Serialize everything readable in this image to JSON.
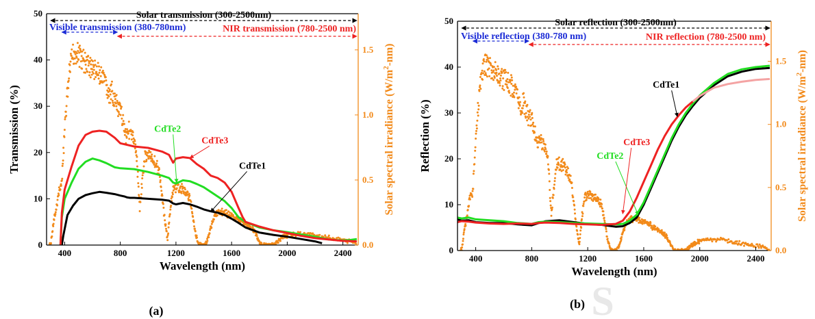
{
  "figure": {
    "panel_a_label": "(a)",
    "panel_b_label": "(b)",
    "watermark_glyph": "S"
  },
  "colors": {
    "CdTe1": "#000000",
    "CdTe2": "#22dd22",
    "CdTe3": "#ee2222",
    "CdTe3_b_tail": "#f4a3a3",
    "solar": "#f28a1a",
    "visible_band": "#1b2bd6",
    "nir_band": "#ee2222",
    "total_band": "#000000"
  },
  "chart_data": [
    {
      "type": "line",
      "panel": "(a)",
      "xlabel": "Wavelength (nm)",
      "ylabel": "Transmission (%)",
      "y2label": "Solar spectral irradiance (W/m^2-nm)",
      "y2label_parts": {
        "pre": "Solar spectral irradiance (W/m",
        "sup": "2",
        "post": "-nm)"
      },
      "xlim": [
        270,
        2510
      ],
      "ylim": [
        0,
        50
      ],
      "y2lim": [
        0,
        1.778
      ],
      "xticks": [
        400,
        800,
        1200,
        1600,
        2000,
        2400
      ],
      "yticks": [
        0,
        10,
        20,
        30,
        40,
        50
      ],
      "y2ticks": [
        0.0,
        0.5,
        1.0,
        1.5
      ],
      "y2ticklabels": [
        "0.0",
        "0.5",
        "1.0",
        "1.5"
      ],
      "grid": false,
      "bands": [
        {
          "label": "Solar transmission (300-2500nm)",
          "x0": 300,
          "x1": 2500,
          "color": "#000000"
        },
        {
          "label": "Visible transmission (380-780nm)",
          "x0": 380,
          "x1": 780,
          "color": "#1b2bd6"
        },
        {
          "label": "NIR transmission (780-2500 nm)",
          "x0": 780,
          "x1": 2500,
          "color": "#ee2222"
        }
      ],
      "series": [
        {
          "name": "CdTe1",
          "color": "#000000",
          "x": [
            380,
            390,
            420,
            460,
            500,
            550,
            600,
            650,
            700,
            760,
            800,
            830,
            850,
            870,
            900,
            1000,
            1100,
            1150,
            1180,
            1200,
            1250,
            1300,
            1350,
            1400,
            1450,
            1500,
            1550,
            1600,
            1650,
            1700,
            1800,
            1900,
            2000,
            2100,
            2200,
            2250
          ],
          "values": [
            0,
            2,
            6.5,
            8.5,
            10,
            10.8,
            11.2,
            11.5,
            11.3,
            11,
            10.7,
            10.5,
            10.3,
            10.2,
            10.2,
            10,
            9.8,
            9.6,
            9,
            8.8,
            9.1,
            8.8,
            8.3,
            7.7,
            7.3,
            7,
            6.5,
            5.7,
            4.8,
            3.8,
            2.7,
            2.2,
            1.8,
            1.3,
            0.8,
            0.4
          ]
        },
        {
          "name": "CdTe2",
          "color": "#22dd22",
          "x": [
            370,
            380,
            400,
            450,
            500,
            550,
            600,
            650,
            700,
            760,
            800,
            900,
            1000,
            1100,
            1150,
            1180,
            1200,
            1250,
            1300,
            1350,
            1400,
            1450,
            1500,
            1550,
            1600,
            1650,
            1700,
            1800,
            1900,
            2000,
            2100,
            2200,
            2300,
            2400,
            2450,
            2500
          ],
          "values": [
            0,
            6,
            10,
            13.5,
            16.5,
            18,
            18.7,
            18.3,
            17.7,
            16.8,
            16.6,
            16.4,
            15.8,
            15,
            14.5,
            13.5,
            13.3,
            14,
            13.8,
            13.2,
            12.5,
            11.5,
            10.5,
            9.5,
            8,
            6,
            5,
            3.8,
            3.2,
            2.8,
            2.3,
            1.8,
            1.2,
            1,
            1.1,
            1.3
          ]
        },
        {
          "name": "CdTe3",
          "color": "#ee2222",
          "x": [
            370,
            380,
            400,
            450,
            500,
            550,
            600,
            650,
            700,
            760,
            800,
            900,
            1000,
            1100,
            1150,
            1180,
            1200,
            1250,
            1300,
            1350,
            1400,
            1450,
            1500,
            1550,
            1600,
            1650,
            1680,
            1700,
            1800,
            1900,
            2000,
            2100,
            2200,
            2300,
            2400,
            2500
          ],
          "values": [
            0,
            7,
            12,
            17,
            21.5,
            23.8,
            24.5,
            24.7,
            24.5,
            23.2,
            22,
            21.3,
            21,
            20.2,
            19.5,
            17.8,
            18.7,
            19,
            18.8,
            17.5,
            16.5,
            15,
            14.5,
            13.5,
            11.5,
            8,
            6,
            5,
            4,
            3.2,
            2.6,
            2,
            1.5,
            1.2,
            0.9,
            0.8
          ]
        }
      ],
      "annotations": [
        {
          "text": "CdTe1",
          "color": "#000000",
          "text_x": 1750,
          "text_y": 16.5,
          "arrow_to": [
            1450,
            7.2
          ]
        },
        {
          "text": "CdTe2",
          "color": "#22dd22",
          "text_x": 1140,
          "text_y": 24.5,
          "arrow_to": [
            1205,
            13.5
          ]
        },
        {
          "text": "CdTe3",
          "color": "#ee2222",
          "text_x": 1480,
          "text_y": 22,
          "arrow_to": [
            1300,
            18.8
          ]
        }
      ],
      "solar": {
        "name": "Solar spectral irradiance",
        "color": "#f28a1a",
        "x": [
          290,
          300,
          320,
          340,
          360,
          380,
          400,
          420,
          440,
          460,
          480,
          500,
          520,
          540,
          560,
          580,
          600,
          620,
          640,
          660,
          680,
          700,
          720,
          740,
          760,
          780,
          800,
          820,
          840,
          860,
          880,
          900,
          920,
          940,
          960,
          980,
          1000,
          1020,
          1040,
          1060,
          1080,
          1100,
          1120,
          1140,
          1160,
          1180,
          1200,
          1220,
          1240,
          1260,
          1280,
          1300,
          1320,
          1340,
          1360,
          1380,
          1400,
          1420,
          1440,
          1460,
          1480,
          1500,
          1520,
          1540,
          1560,
          1580,
          1600,
          1620,
          1640,
          1660,
          1680,
          1700,
          1720,
          1740,
          1760,
          1780,
          1800,
          1820,
          1840,
          1860,
          1880,
          1900,
          1920,
          1940,
          1960,
          1980,
          2000,
          2050,
          2100,
          2150,
          2200,
          2250,
          2300,
          2350,
          2400,
          2450,
          2500
        ],
        "values": [
          0,
          0.01,
          0.18,
          0.3,
          0.45,
          0.5,
          0.95,
          1.25,
          1.45,
          1.55,
          1.58,
          1.56,
          1.52,
          1.5,
          1.48,
          1.46,
          1.44,
          1.43,
          1.4,
          1.38,
          1.34,
          1.3,
          1.2,
          1.25,
          1.18,
          1.12,
          1.1,
          1.02,
          0.9,
          0.95,
          0.9,
          0.85,
          0.7,
          0.3,
          0.55,
          0.75,
          0.73,
          0.72,
          0.7,
          0.65,
          0.6,
          0.4,
          0.2,
          0.05,
          0.3,
          0.45,
          0.48,
          0.47,
          0.46,
          0.44,
          0.42,
          0.38,
          0.25,
          0.1,
          0.02,
          0.0,
          0.0,
          0.02,
          0.1,
          0.18,
          0.24,
          0.26,
          0.27,
          0.27,
          0.26,
          0.25,
          0.24,
          0.23,
          0.22,
          0.2,
          0.19,
          0.18,
          0.16,
          0.14,
          0.12,
          0.08,
          0.03,
          0.0,
          0.0,
          0.0,
          0.0,
          0.0,
          0.02,
          0.04,
          0.06,
          0.07,
          0.08,
          0.09,
          0.09,
          0.09,
          0.08,
          0.07,
          0.06,
          0.05,
          0.04,
          0.03,
          0.02
        ]
      }
    },
    {
      "type": "line",
      "panel": "(b)",
      "xlabel": "Wavelength (nm)",
      "ylabel": "Reflection (%)",
      "y2label": "Solar spectral irradiance (W/m^2-nm)",
      "y2label_parts": {
        "pre": "Solar spectral irradiance (W/m",
        "sup": "2",
        "post": "-nm)"
      },
      "xlim": [
        270,
        2510
      ],
      "ylim": [
        0,
        50
      ],
      "y2lim": [
        0,
        1.818
      ],
      "xticks": [
        400,
        800,
        1200,
        1600,
        2000,
        2400
      ],
      "yticks": [
        0,
        10,
        20,
        30,
        40,
        50
      ],
      "y2ticks": [
        0.0,
        0.5,
        1.0,
        1.5
      ],
      "y2ticklabels": [
        "0.0",
        "0.5",
        "1.0",
        "1.5"
      ],
      "grid": false,
      "bands": [
        {
          "label": "Solar reflection (300-2500nm)",
          "x0": 300,
          "x1": 2500,
          "color": "#000000"
        },
        {
          "label": "Visible reflection (380-780 nm)",
          "x0": 380,
          "x1": 780,
          "color": "#1b2bd6"
        },
        {
          "label": "NIR reflection (780-2500 nm)",
          "x0": 780,
          "x1": 2500,
          "color": "#ee2222"
        }
      ],
      "series": [
        {
          "name": "CdTe1",
          "color": "#000000",
          "x": [
            270,
            300,
            350,
            400,
            500,
            600,
            700,
            800,
            850,
            900,
            1000,
            1100,
            1200,
            1300,
            1400,
            1450,
            1500,
            1550,
            1600,
            1650,
            1700,
            1750,
            1800,
            1850,
            1900,
            1950,
            2000,
            2100,
            2200,
            2300,
            2400,
            2500
          ],
          "values": [
            6.8,
            6.5,
            6.6,
            6.2,
            6,
            6,
            5.7,
            5.5,
            6,
            6.4,
            6.6,
            6.2,
            5.8,
            5.6,
            5.2,
            5.3,
            6,
            7.2,
            10,
            13.5,
            17,
            20.5,
            24,
            27,
            29.5,
            31.5,
            33.3,
            36,
            38,
            39,
            39.6,
            39.8
          ]
        },
        {
          "name": "CdTe2",
          "color": "#22dd22",
          "x": [
            270,
            300,
            350,
            400,
            500,
            600,
            700,
            800,
            850,
            900,
            1000,
            1100,
            1200,
            1300,
            1400,
            1450,
            1500,
            1550,
            1600,
            1650,
            1700,
            1750,
            1800,
            1850,
            1900,
            1950,
            2000,
            2100,
            2200,
            2300,
            2400,
            2500
          ],
          "values": [
            7.2,
            7,
            7.2,
            6.8,
            6.6,
            6.4,
            6,
            5.8,
            6.2,
            6.3,
            6.2,
            6,
            5.9,
            5.8,
            5.7,
            5.8,
            6.5,
            7.8,
            10.5,
            14,
            17.5,
            21,
            24.5,
            27.5,
            30,
            32,
            33.8,
            36.5,
            38.5,
            39.5,
            40,
            40.3
          ]
        },
        {
          "name": "CdTe3",
          "color": "#ee2222",
          "tail_color": "#f4a3a3",
          "tail_from": 1950,
          "x": [
            270,
            300,
            350,
            400,
            500,
            600,
            700,
            800,
            850,
            900,
            1000,
            1100,
            1200,
            1300,
            1400,
            1450,
            1500,
            1550,
            1600,
            1650,
            1700,
            1750,
            1800,
            1850,
            1900,
            1950,
            2000,
            2100,
            2200,
            2300,
            2400,
            2500
          ],
          "values": [
            6.2,
            6.4,
            6.3,
            6.1,
            5.9,
            5.8,
            5.9,
            5.8,
            6,
            6.1,
            6,
            5.8,
            5.7,
            5.6,
            5.8,
            6.5,
            8.5,
            11.5,
            15,
            18.5,
            22,
            25,
            27.5,
            29.5,
            31.2,
            32.5,
            33.7,
            35.5,
            36.3,
            36.8,
            37.2,
            37.4
          ]
        }
      ],
      "annotations": [
        {
          "text": "CdTe1",
          "color": "#000000",
          "text_x": 1760,
          "text_y": 35.5,
          "arrow_to": [
            1840,
            29.2
          ]
        },
        {
          "text": "CdTe2",
          "color": "#22dd22",
          "text_x": 1360,
          "text_y": 20,
          "arrow_to": [
            1560,
            7.8
          ]
        },
        {
          "text": "CdTe3",
          "color": "#ee2222",
          "text_x": 1550,
          "text_y": 23,
          "arrow_to": [
            1450,
            8
          ]
        }
      ],
      "solar": {
        "name": "Solar spectral irradiance",
        "color": "#f28a1a",
        "x": [
          290,
          300,
          320,
          340,
          360,
          380,
          400,
          420,
          440,
          460,
          480,
          500,
          520,
          540,
          560,
          580,
          600,
          620,
          640,
          660,
          680,
          700,
          720,
          740,
          760,
          780,
          800,
          820,
          840,
          860,
          880,
          900,
          920,
          940,
          960,
          980,
          1000,
          1020,
          1040,
          1060,
          1080,
          1100,
          1120,
          1140,
          1160,
          1180,
          1200,
          1220,
          1240,
          1260,
          1280,
          1300,
          1320,
          1340,
          1360,
          1380,
          1400,
          1420,
          1440,
          1460,
          1480,
          1500,
          1520,
          1540,
          1560,
          1580,
          1600,
          1620,
          1640,
          1660,
          1680,
          1700,
          1720,
          1740,
          1760,
          1780,
          1800,
          1820,
          1840,
          1860,
          1880,
          1900,
          1920,
          1940,
          1960,
          1980,
          2000,
          2050,
          2100,
          2150,
          2200,
          2250,
          2300,
          2350,
          2400,
          2450,
          2500
        ],
        "values": [
          0,
          0.01,
          0.18,
          0.3,
          0.45,
          0.5,
          0.95,
          1.25,
          1.45,
          1.55,
          1.58,
          1.56,
          1.52,
          1.5,
          1.48,
          1.46,
          1.44,
          1.43,
          1.4,
          1.38,
          1.34,
          1.3,
          1.2,
          1.25,
          1.18,
          1.12,
          1.1,
          1.02,
          0.9,
          0.95,
          0.9,
          0.85,
          0.7,
          0.3,
          0.55,
          0.75,
          0.73,
          0.72,
          0.7,
          0.65,
          0.6,
          0.4,
          0.2,
          0.05,
          0.3,
          0.45,
          0.48,
          0.47,
          0.46,
          0.44,
          0.42,
          0.38,
          0.25,
          0.1,
          0.02,
          0.0,
          0.0,
          0.02,
          0.1,
          0.18,
          0.24,
          0.26,
          0.27,
          0.27,
          0.26,
          0.25,
          0.24,
          0.23,
          0.22,
          0.2,
          0.19,
          0.18,
          0.16,
          0.14,
          0.12,
          0.08,
          0.03,
          0.0,
          0.0,
          0.0,
          0.0,
          0.0,
          0.02,
          0.04,
          0.06,
          0.07,
          0.08,
          0.09,
          0.09,
          0.09,
          0.08,
          0.07,
          0.06,
          0.05,
          0.04,
          0.03,
          0.02
        ]
      }
    }
  ]
}
